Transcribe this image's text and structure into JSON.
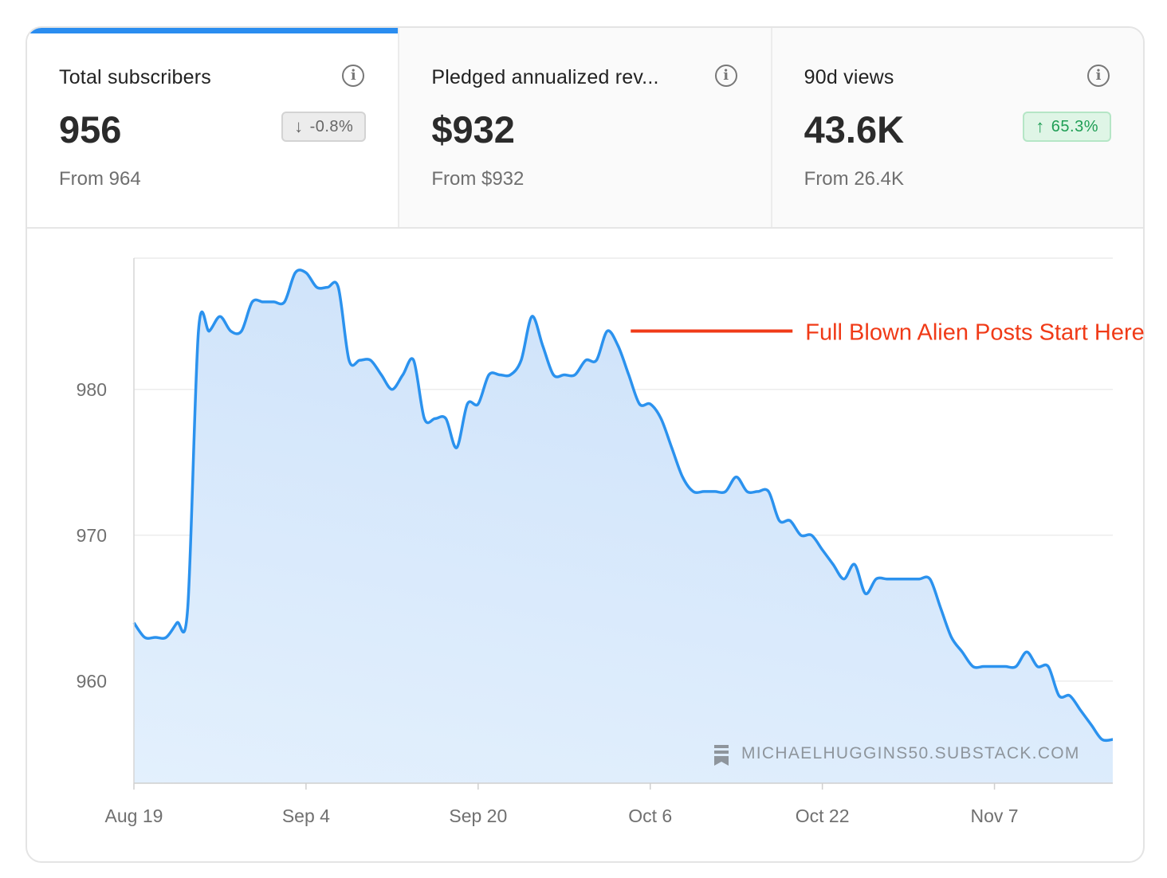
{
  "stats": [
    {
      "label": "Total subscribers",
      "value": "956",
      "delta": "-0.8%",
      "direction": "down",
      "from": "From 964",
      "active": true
    },
    {
      "label": "Pledged annualized rev...",
      "value": "$932",
      "delta": "",
      "direction": "none",
      "from": "From $932",
      "active": false
    },
    {
      "label": "90d views",
      "value": "43.6K",
      "delta": "65.3%",
      "direction": "up",
      "from": "From 26.4K",
      "active": false
    }
  ],
  "icons": {
    "info": "info-circle-icon",
    "down": "arrow-down-icon",
    "up": "arrow-up-icon",
    "watermark": "substack-logo-icon"
  },
  "colors": {
    "accent": "#2a8df0",
    "line": "#2b92ee",
    "area": "#d3e6fb",
    "annotation": "#f03a17",
    "up": "#1f9e55"
  },
  "watermark": "MICHAELHUGGINS50.SUBSTACK.COM",
  "chart_data": {
    "type": "area",
    "title": "",
    "xlabel": "",
    "ylabel": "",
    "ylim": [
      953,
      989
    ],
    "yticks": [
      960,
      970,
      980
    ],
    "xlim": [
      "Aug 19",
      "Nov 14"
    ],
    "xticks": [
      "Aug 19",
      "Sep 4",
      "Sep 20",
      "Oct 6",
      "Oct 22",
      "Nov 7"
    ],
    "grid": true,
    "series": [
      {
        "values": [
          {
            "x": "Aug 19",
            "y": 964
          },
          {
            "x": "Aug 20",
            "y": 963
          },
          {
            "x": "Aug 21",
            "y": 963
          },
          {
            "x": "Aug 22",
            "y": 963
          },
          {
            "x": "Aug 23",
            "y": 964
          },
          {
            "x": "Aug 24",
            "y": 965
          },
          {
            "x": "Aug 25",
            "y": 984
          },
          {
            "x": "Aug 26",
            "y": 984
          },
          {
            "x": "Aug 27",
            "y": 985
          },
          {
            "x": "Aug 28",
            "y": 984
          },
          {
            "x": "Aug 29",
            "y": 984
          },
          {
            "x": "Aug 30",
            "y": 986
          },
          {
            "x": "Aug 31",
            "y": 986
          },
          {
            "x": "Sep 1",
            "y": 986
          },
          {
            "x": "Sep 2",
            "y": 986
          },
          {
            "x": "Sep 3",
            "y": 988
          },
          {
            "x": "Sep 4",
            "y": 988
          },
          {
            "x": "Sep 5",
            "y": 987
          },
          {
            "x": "Sep 6",
            "y": 987
          },
          {
            "x": "Sep 7",
            "y": 987
          },
          {
            "x": "Sep 8",
            "y": 982
          },
          {
            "x": "Sep 9",
            "y": 982
          },
          {
            "x": "Sep 10",
            "y": 982
          },
          {
            "x": "Sep 11",
            "y": 981
          },
          {
            "x": "Sep 12",
            "y": 980
          },
          {
            "x": "Sep 13",
            "y": 981
          },
          {
            "x": "Sep 14",
            "y": 982
          },
          {
            "x": "Sep 15",
            "y": 978
          },
          {
            "x": "Sep 16",
            "y": 978
          },
          {
            "x": "Sep 17",
            "y": 978
          },
          {
            "x": "Sep 18",
            "y": 976
          },
          {
            "x": "Sep 19",
            "y": 979
          },
          {
            "x": "Sep 20",
            "y": 979
          },
          {
            "x": "Sep 21",
            "y": 981
          },
          {
            "x": "Sep 22",
            "y": 981
          },
          {
            "x": "Sep 23",
            "y": 981
          },
          {
            "x": "Sep 24",
            "y": 982
          },
          {
            "x": "Sep 25",
            "y": 985
          },
          {
            "x": "Sep 26",
            "y": 983
          },
          {
            "x": "Sep 27",
            "y": 981
          },
          {
            "x": "Sep 28",
            "y": 981
          },
          {
            "x": "Sep 29",
            "y": 981
          },
          {
            "x": "Sep 30",
            "y": 982
          },
          {
            "x": "Oct 1",
            "y": 982
          },
          {
            "x": "Oct 2",
            "y": 984
          },
          {
            "x": "Oct 3",
            "y": 983
          },
          {
            "x": "Oct 4",
            "y": 981
          },
          {
            "x": "Oct 5",
            "y": 979
          },
          {
            "x": "Oct 6",
            "y": 979
          },
          {
            "x": "Oct 7",
            "y": 978
          },
          {
            "x": "Oct 8",
            "y": 976
          },
          {
            "x": "Oct 9",
            "y": 974
          },
          {
            "x": "Oct 10",
            "y": 973
          },
          {
            "x": "Oct 11",
            "y": 973
          },
          {
            "x": "Oct 12",
            "y": 973
          },
          {
            "x": "Oct 13",
            "y": 973
          },
          {
            "x": "Oct 14",
            "y": 974
          },
          {
            "x": "Oct 15",
            "y": 973
          },
          {
            "x": "Oct 16",
            "y": 973
          },
          {
            "x": "Oct 17",
            "y": 973
          },
          {
            "x": "Oct 18",
            "y": 971
          },
          {
            "x": "Oct 19",
            "y": 971
          },
          {
            "x": "Oct 20",
            "y": 970
          },
          {
            "x": "Oct 21",
            "y": 970
          },
          {
            "x": "Oct 22",
            "y": 969
          },
          {
            "x": "Oct 23",
            "y": 968
          },
          {
            "x": "Oct 24",
            "y": 967
          },
          {
            "x": "Oct 25",
            "y": 968
          },
          {
            "x": "Oct 26",
            "y": 966
          },
          {
            "x": "Oct 27",
            "y": 967
          },
          {
            "x": "Oct 28",
            "y": 967
          },
          {
            "x": "Oct 29",
            "y": 967
          },
          {
            "x": "Oct 30",
            "y": 967
          },
          {
            "x": "Oct 31",
            "y": 967
          },
          {
            "x": "Nov 1",
            "y": 967
          },
          {
            "x": "Nov 2",
            "y": 965
          },
          {
            "x": "Nov 3",
            "y": 963
          },
          {
            "x": "Nov 4",
            "y": 962
          },
          {
            "x": "Nov 5",
            "y": 961
          },
          {
            "x": "Nov 6",
            "y": 961
          },
          {
            "x": "Nov 7",
            "y": 961
          },
          {
            "x": "Nov 8",
            "y": 961
          },
          {
            "x": "Nov 9",
            "y": 961
          },
          {
            "x": "Nov 10",
            "y": 962
          },
          {
            "x": "Nov 11",
            "y": 961
          },
          {
            "x": "Nov 12",
            "y": 961
          },
          {
            "x": "Nov 13",
            "y": 959
          },
          {
            "x": "Nov 14",
            "y": 959
          },
          {
            "x": "Nov 15",
            "y": 958
          },
          {
            "x": "Nov 16",
            "y": 957
          },
          {
            "x": "Nov 17",
            "y": 956
          },
          {
            "x": "Nov 18",
            "y": 956
          }
        ]
      }
    ],
    "annotation": {
      "text": "Full Blown Alien Posts Start Here",
      "x": "Oct 3",
      "y": 984
    }
  }
}
